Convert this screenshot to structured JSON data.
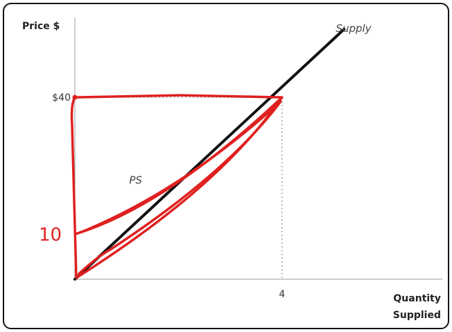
{
  "chart_data": {
    "type": "line",
    "ylabel": "Price $",
    "xlabel": [
      "Quantity",
      "Supplied"
    ],
    "series": [
      {
        "name": "Supply",
        "x": [
          0,
          4,
          5.2
        ],
        "y": [
          0,
          40,
          55
        ]
      }
    ],
    "xlim": [
      0,
      6.6
    ],
    "ylim": [
      0,
      55
    ],
    "x_ticks": [
      {
        "value": 4,
        "label": "4"
      }
    ],
    "y_ticks": [
      {
        "value": 40,
        "label": "$40"
      }
    ],
    "dotted_guides": [
      {
        "x": 4,
        "y": 40
      }
    ],
    "annotations": [
      {
        "text": "PS",
        "x": 1.05,
        "y": 21
      },
      {
        "text": "10",
        "x": 0,
        "y": 10,
        "handwritten": true
      }
    ],
    "highlight_triangle": {
      "vertices": [
        [
          0,
          0
        ],
        [
          0,
          40
        ],
        [
          4,
          40
        ]
      ],
      "inner_vertex": [
        0,
        10
      ]
    },
    "grid": false,
    "legend": "none",
    "colors": {
      "supply": "#111111",
      "highlight": "#e02020",
      "guides": "#888888",
      "axis": "#999999"
    }
  }
}
